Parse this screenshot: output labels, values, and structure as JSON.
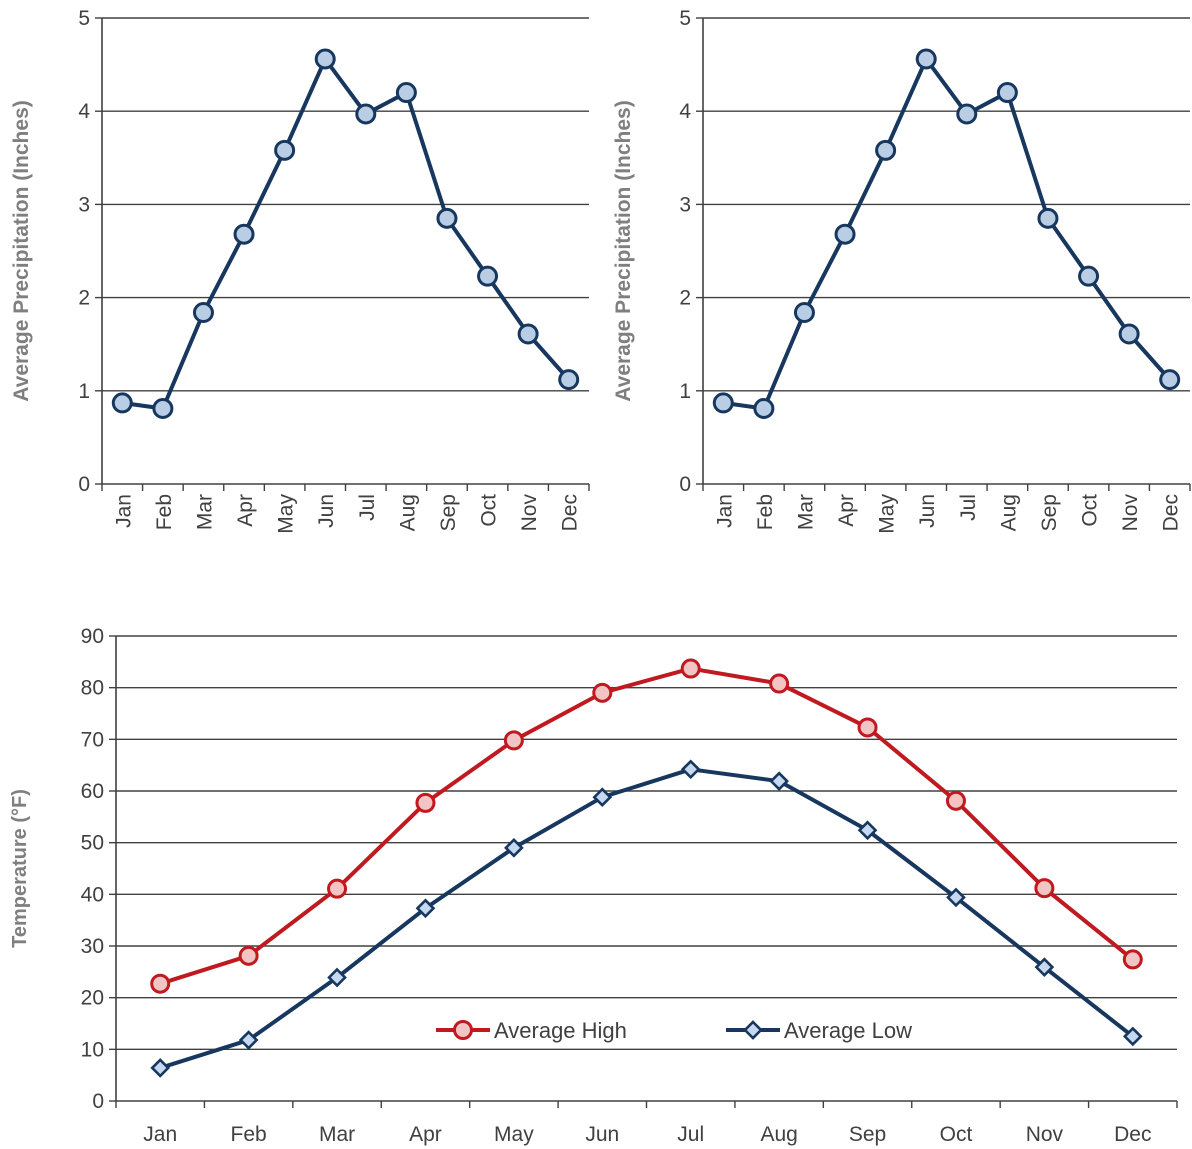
{
  "colors": {
    "precip_line": "#17375e",
    "precip_marker_fill": "#b9cde5",
    "high_line": "#c0191f",
    "high_marker_fill": "#f2c4c4",
    "low_line": "#17375e",
    "low_marker_fill": "#c6d9f1",
    "grid": "#404040",
    "axis_title": "#7f7f7f",
    "tick_text": "#404040"
  },
  "chart_data": [
    {
      "type": "line",
      "ylabel": "Average Precipitation (Inches)",
      "xlabel": "",
      "categories": [
        "Jan",
        "Feb",
        "Mar",
        "Apr",
        "May",
        "Jun",
        "Jul",
        "Aug",
        "Sep",
        "Oct",
        "Nov",
        "Dec"
      ],
      "series": [
        {
          "values": [
            0.87,
            0.81,
            1.84,
            2.68,
            3.58,
            4.56,
            3.97,
            4.2,
            2.85,
            2.23,
            1.61,
            1.12
          ],
          "marker": "circle"
        }
      ],
      "ylim": [
        0,
        5
      ],
      "yticks": [
        0,
        1,
        2,
        3,
        4,
        5
      ],
      "grid": true,
      "x_tick_rotation": "vertical"
    },
    {
      "type": "line",
      "ylabel": "Average Precipitation (Inches)",
      "xlabel": "",
      "categories": [
        "Jan",
        "Feb",
        "Mar",
        "Apr",
        "May",
        "Jun",
        "Jul",
        "Aug",
        "Sep",
        "Oct",
        "Nov",
        "Dec"
      ],
      "series": [
        {
          "values": [
            0.87,
            0.81,
            1.84,
            2.68,
            3.58,
            4.56,
            3.97,
            4.2,
            2.85,
            2.23,
            1.61,
            1.12
          ],
          "marker": "circle"
        }
      ],
      "ylim": [
        0,
        5
      ],
      "yticks": [
        0,
        1,
        2,
        3,
        4,
        5
      ],
      "grid": true,
      "x_tick_rotation": "vertical"
    },
    {
      "type": "line",
      "ylabel": "Temperature (°F)",
      "xlabel": "",
      "categories": [
        "Jan",
        "Feb",
        "Mar",
        "Apr",
        "May",
        "Jun",
        "Jul",
        "Aug",
        "Sep",
        "Oct",
        "Nov",
        "Dec"
      ],
      "series": [
        {
          "name": "Average High",
          "values": [
            22.7,
            28.1,
            41.1,
            57.7,
            69.8,
            79.0,
            83.7,
            80.8,
            72.3,
            58.1,
            41.2,
            27.4
          ],
          "marker": "circle"
        },
        {
          "name": "Average Low",
          "values": [
            6.4,
            11.8,
            23.9,
            37.3,
            49.0,
            58.8,
            64.2,
            61.9,
            52.4,
            39.4,
            25.9,
            12.5
          ],
          "marker": "diamond"
        }
      ],
      "ylim": [
        0,
        90
      ],
      "yticks": [
        0,
        10,
        20,
        30,
        40,
        50,
        60,
        70,
        80,
        90
      ],
      "grid": true,
      "legend": "bottom-center inside plot"
    }
  ]
}
